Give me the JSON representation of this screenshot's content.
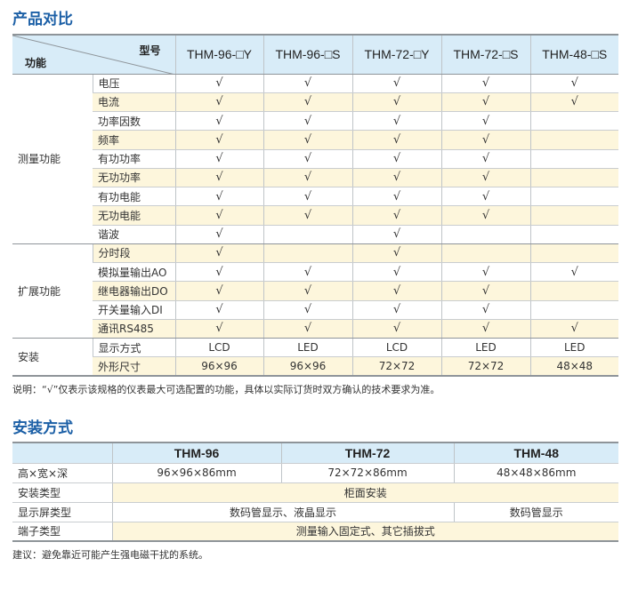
{
  "section1": {
    "title": "产品对比",
    "corner_model": "型号",
    "corner_function": "功能",
    "models": [
      "THM-96-□Y",
      "THM-96-□S",
      "THM-72-□Y",
      "THM-72-□S",
      "THM-48-□S"
    ],
    "check": "√",
    "groups": [
      {
        "label": "测量功能",
        "rows": [
          {
            "name": "电压",
            "values": [
              1,
              1,
              1,
              1,
              1
            ]
          },
          {
            "name": "电流",
            "values": [
              1,
              1,
              1,
              1,
              1
            ]
          },
          {
            "name": "功率因数",
            "values": [
              1,
              1,
              1,
              1,
              0
            ]
          },
          {
            "name": "频率",
            "values": [
              1,
              1,
              1,
              1,
              0
            ]
          },
          {
            "name": "有功功率",
            "values": [
              1,
              1,
              1,
              1,
              0
            ]
          },
          {
            "name": "无功功率",
            "values": [
              1,
              1,
              1,
              1,
              0
            ]
          },
          {
            "name": "有功电能",
            "values": [
              1,
              1,
              1,
              1,
              0
            ]
          },
          {
            "name": "无功电能",
            "values": [
              1,
              1,
              1,
              1,
              0
            ]
          },
          {
            "name": "谐波",
            "values": [
              1,
              0,
              1,
              0,
              0
            ]
          }
        ]
      },
      {
        "label": "扩展功能",
        "rows": [
          {
            "name": "分时段",
            "values": [
              1,
              0,
              1,
              0,
              0
            ]
          },
          {
            "name": "模拟量输出AO",
            "values": [
              1,
              1,
              1,
              1,
              1
            ]
          },
          {
            "name": "继电器输出DO",
            "values": [
              1,
              1,
              1,
              1,
              0
            ]
          },
          {
            "name": "开关量输入DI",
            "values": [
              1,
              1,
              1,
              1,
              0
            ]
          },
          {
            "name": "通讯RS485",
            "values": [
              1,
              1,
              1,
              1,
              1
            ]
          }
        ]
      },
      {
        "label": "安装",
        "rows": [
          {
            "name": "显示方式",
            "values": [
              "LCD",
              "LED",
              "LCD",
              "LED",
              "LED"
            ]
          },
          {
            "name": "外形尺寸",
            "values": [
              "96×96",
              "96×96",
              "72×72",
              "72×72",
              "48×48"
            ]
          }
        ]
      }
    ],
    "note": "说明：“√”仅表示该规格的仪表最大可选配置的功能，具体以实际订货时双方确认的技术要求为准。"
  },
  "section2": {
    "title": "安装方式",
    "models": [
      "THM-96",
      "THM-72",
      "THM-48"
    ],
    "dims_label": "高×宽×深",
    "dims": [
      "96×96×86mm",
      "72×72×86mm",
      "48×48×86mm"
    ],
    "mount_label": "安装类型",
    "mount": "柜面安装",
    "display_label": "显示屏类型",
    "display_a": "数码管显示、液晶显示",
    "display_b": "数码管显示",
    "terminal_label": "端子类型",
    "terminal": "测量输入固定式、其它插拔式",
    "note": "建议：避免靠近可能产生强电磁干扰的系统。"
  },
  "colors": {
    "title": "#1b5fa6",
    "header": "#d8ecf8",
    "stripe": "#fdf6dc"
  }
}
